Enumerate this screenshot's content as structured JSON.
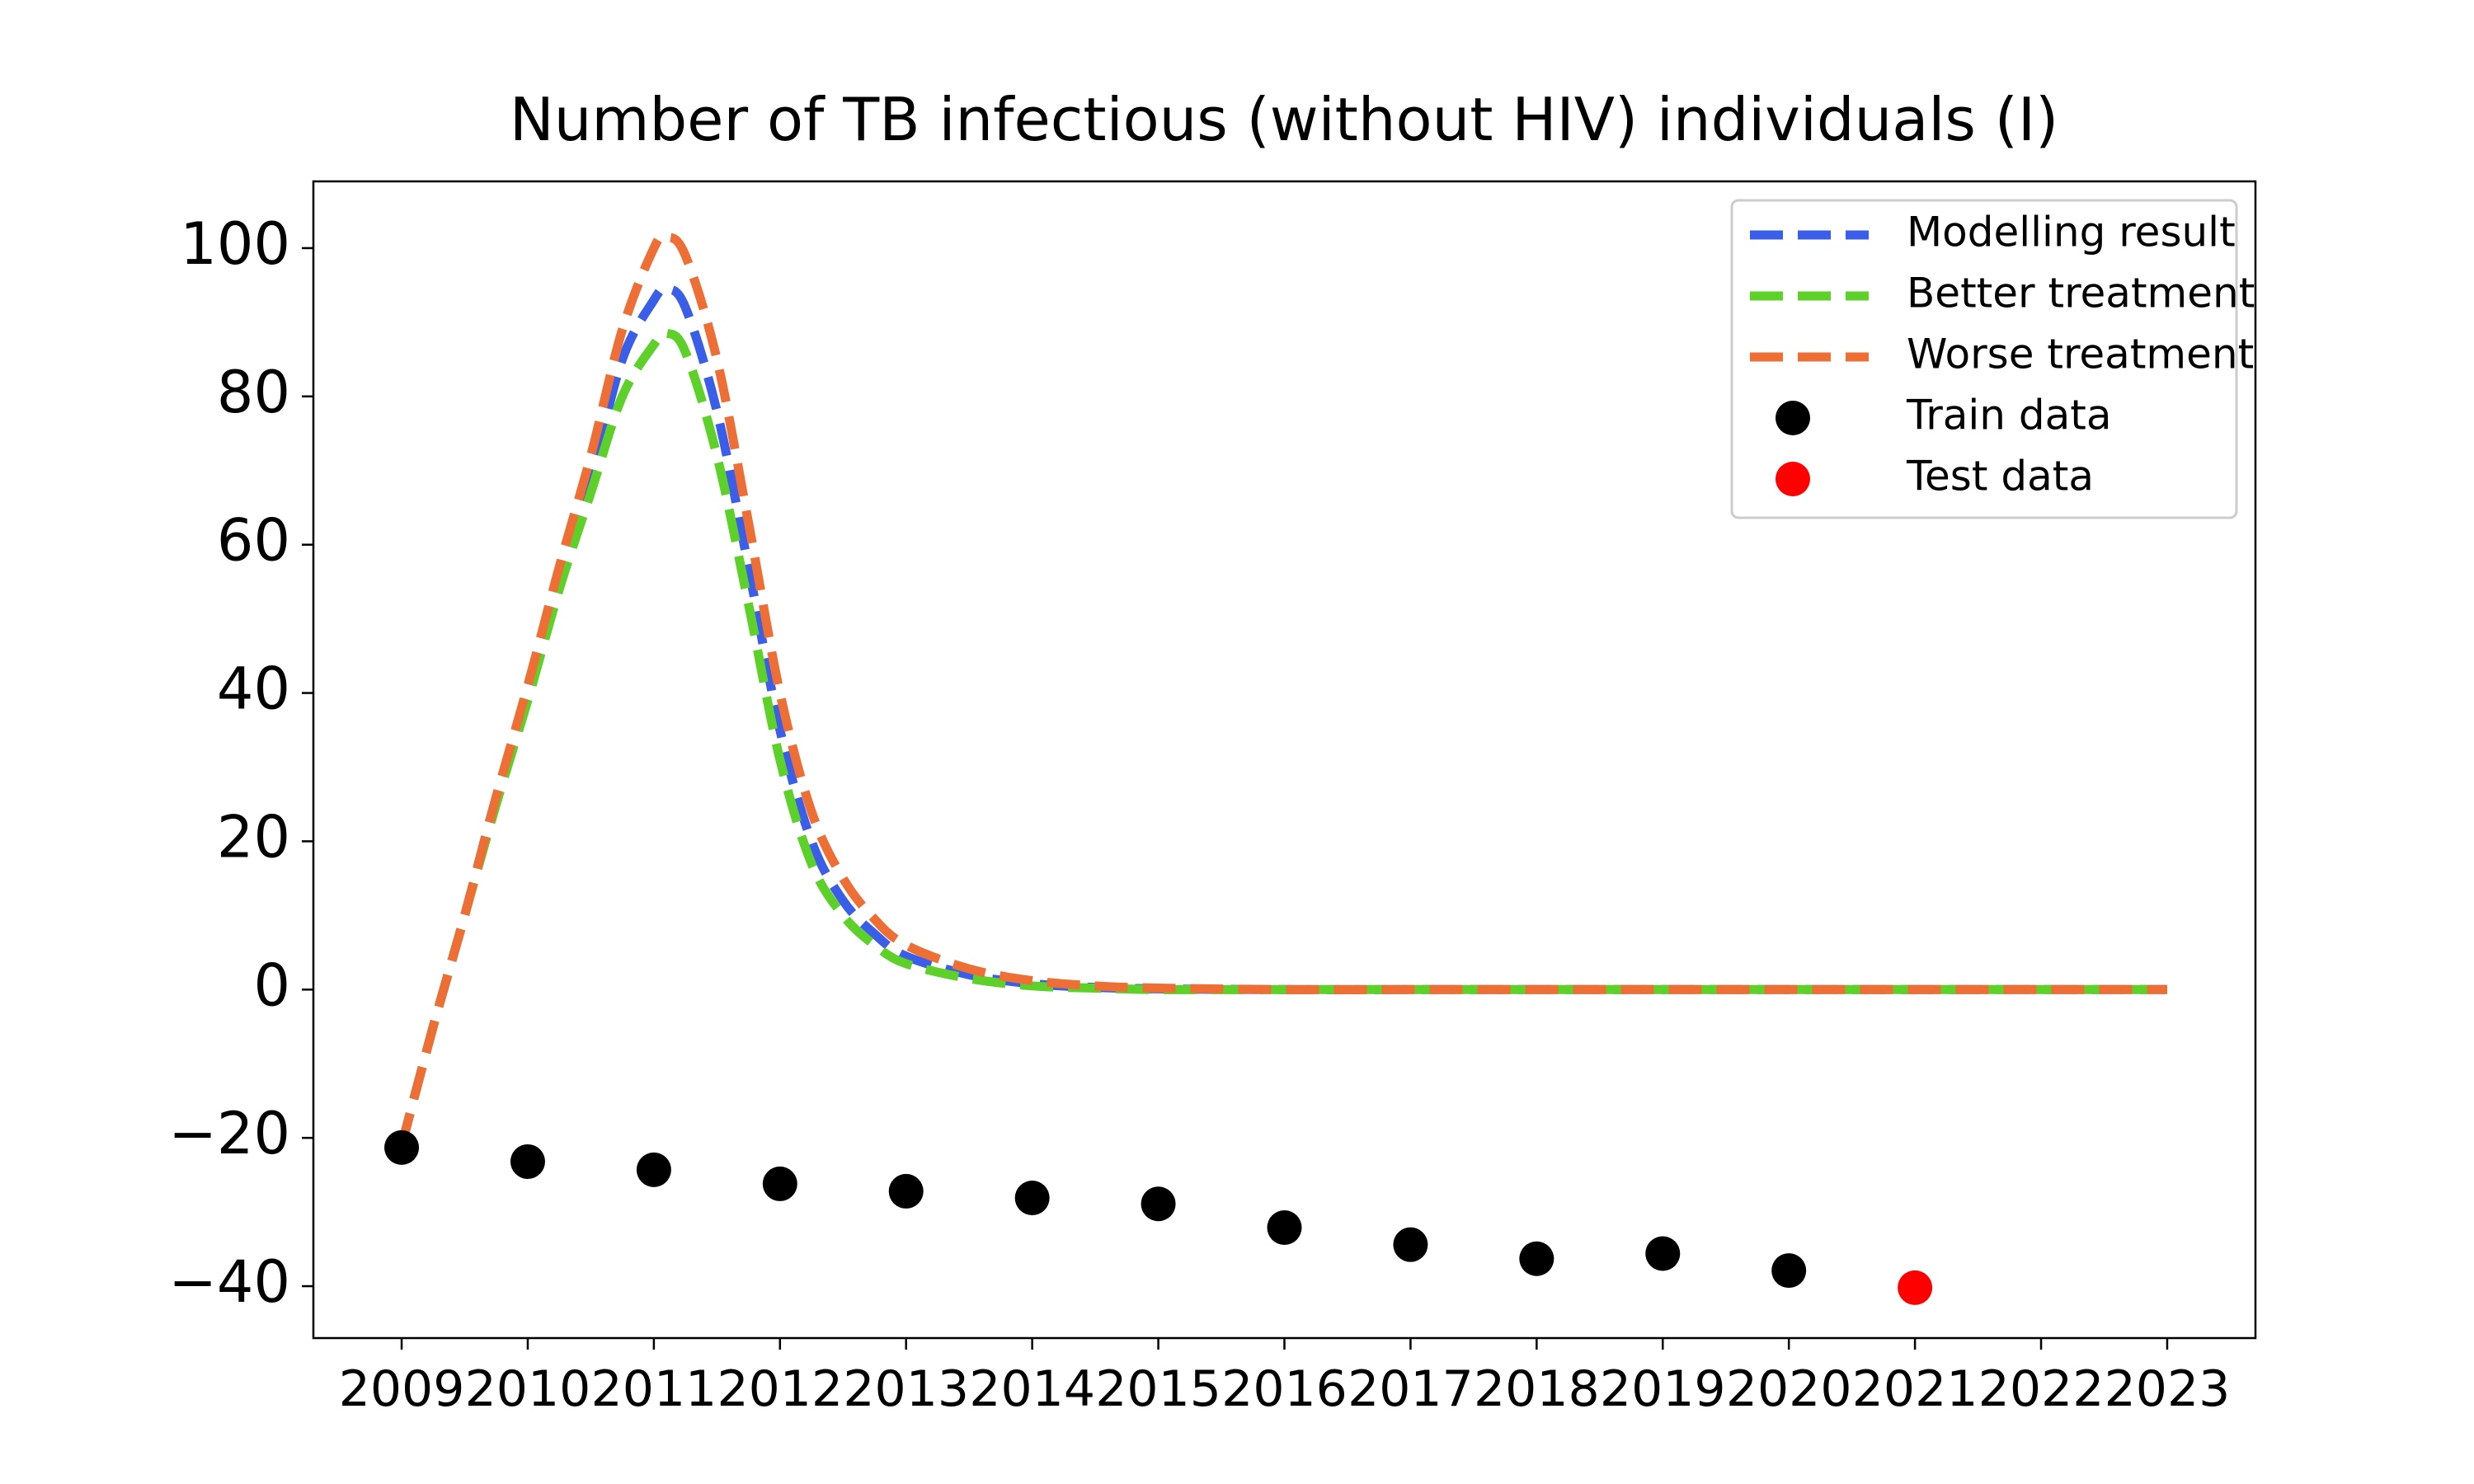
{
  "chart_data": {
    "type": "line",
    "title": "Number of TB infectious (without HIV) individuals (I)",
    "xlabel": "",
    "ylabel": "",
    "x_ticks": [
      "2009",
      "2010",
      "2011",
      "2012",
      "2013",
      "2014",
      "2015",
      "2016",
      "2017",
      "2018",
      "2019",
      "2020",
      "2021",
      "2022",
      "2023"
    ],
    "x_range": [
      2008.3,
      2023.7
    ],
    "y_ticks": [
      "100",
      "80",
      "60",
      "40",
      "20",
      "0",
      "−20",
      "−40"
    ],
    "ylim": [
      -47,
      109
    ],
    "grid": false,
    "legend_position": "top-right",
    "series": [
      {
        "name": "Modelling result",
        "style": "dashed",
        "color": "#3a5ee8",
        "x": [
          2009,
          2009.25,
          2009.5,
          2009.75,
          2010,
          2010.25,
          2010.5,
          2010.75,
          2011,
          2011.1,
          2011.25,
          2011.5,
          2011.75,
          2012,
          2012.25,
          2012.5,
          2012.75,
          2013,
          2013.5,
          2014,
          2014.5,
          2015,
          2016,
          2017,
          2018,
          2019,
          2020,
          2021,
          2022,
          2023
        ],
        "y": [
          -21,
          -5,
          10,
          26,
          40,
          55,
          69,
          85,
          93,
          94.5,
          92,
          78,
          57,
          35,
          20,
          12,
          7.5,
          4.5,
          2,
          0.8,
          0.3,
          0.1,
          0,
          0,
          0,
          0,
          0,
          0,
          0,
          0
        ]
      },
      {
        "name": "Better treatment",
        "style": "dashed",
        "color": "#5dd12a",
        "x": [
          2009,
          2009.25,
          2009.5,
          2009.75,
          2010,
          2010.25,
          2010.5,
          2010.75,
          2011,
          2011.1,
          2011.25,
          2011.5,
          2011.75,
          2012,
          2012.25,
          2012.5,
          2012.75,
          2013,
          2013.5,
          2014,
          2014.5,
          2015,
          2016,
          2017,
          2018,
          2019,
          2020,
          2021,
          2022,
          2023
        ],
        "y": [
          -21,
          -5,
          10,
          25,
          39,
          54,
          67,
          80,
          87,
          88.5,
          86,
          72,
          52,
          31,
          17,
          10,
          6,
          3.5,
          1.5,
          0.5,
          0.2,
          0,
          0,
          0,
          0,
          0,
          0,
          0,
          0,
          0
        ]
      },
      {
        "name": "Worse treatment",
        "style": "dashed",
        "color": "#ee6f35",
        "x": [
          2009,
          2009.25,
          2009.5,
          2009.75,
          2010,
          2010.25,
          2010.5,
          2010.75,
          2011,
          2011.1,
          2011.25,
          2011.5,
          2011.75,
          2012,
          2012.25,
          2012.5,
          2012.75,
          2013,
          2013.5,
          2014,
          2014.5,
          2015,
          2016,
          2017,
          2018,
          2019,
          2020,
          2021,
          2022,
          2023
        ],
        "y": [
          -21,
          -5,
          10,
          26,
          41,
          57,
          72,
          89,
          100,
          101.5,
          99,
          85,
          63,
          40,
          24,
          15,
          9.5,
          6,
          2.8,
          1.2,
          0.5,
          0.2,
          0,
          0,
          0,
          0,
          0,
          0,
          0,
          0
        ]
      },
      {
        "name": "Train data",
        "style": "scatter",
        "color": "#000000",
        "x": [
          2009,
          2010,
          2011,
          2012,
          2013,
          2014,
          2015,
          2016,
          2017,
          2018,
          2019,
          2020
        ],
        "y": [
          -21.3,
          -23.2,
          -24.3,
          -26.2,
          -27.2,
          -28.1,
          -28.9,
          -32.1,
          -34.4,
          -36.3,
          -35.6,
          -37.9
        ]
      },
      {
        "name": "Test data",
        "style": "scatter",
        "color": "#ff0000",
        "x": [
          2021
        ],
        "y": [
          -40.2
        ]
      }
    ]
  }
}
